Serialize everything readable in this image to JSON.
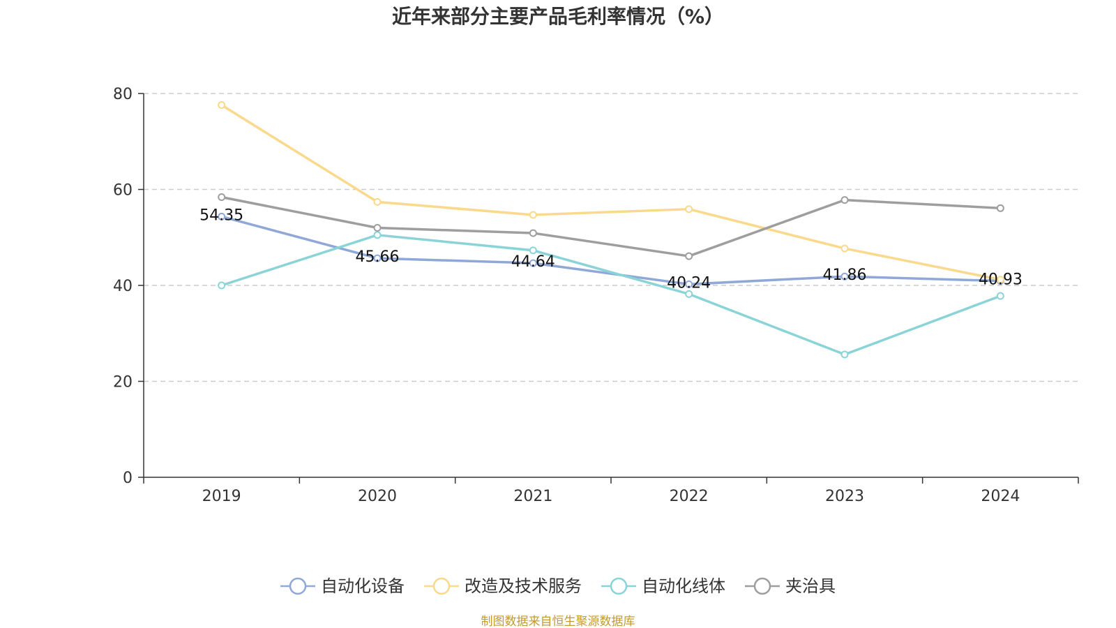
{
  "chart_data": {
    "type": "line",
    "title": "近年来部分主要产品毛利率情况（%）",
    "categories": [
      "2019",
      "2020",
      "2021",
      "2022",
      "2023",
      "2024"
    ],
    "ylim": [
      0,
      80
    ],
    "yticks": [
      0,
      20,
      40,
      60,
      80
    ],
    "grid": true,
    "legend_position": "bottom",
    "series": [
      {
        "name": "自动化设备",
        "color": "#8fa8d8",
        "values": [
          54.35,
          45.66,
          44.64,
          40.24,
          41.86,
          40.93
        ],
        "labels": [
          "54.35",
          "45.66",
          "44.64",
          "40.24",
          "41.86",
          "40.93"
        ]
      },
      {
        "name": "改造及技术服务",
        "color": "#fad98d",
        "values": [
          77.6,
          57.4,
          54.7,
          55.9,
          47.7,
          41.2
        ]
      },
      {
        "name": "自动化线体",
        "color": "#8ad4d8",
        "values": [
          40.0,
          50.5,
          47.3,
          38.2,
          25.6,
          37.8
        ]
      },
      {
        "name": "夹治具",
        "color": "#9e9e9e",
        "values": [
          58.4,
          52.0,
          50.9,
          46.1,
          57.8,
          56.1
        ]
      }
    ]
  },
  "source": {
    "text": "制图数据来自恒生聚源数据库",
    "color": "#c49a2e"
  }
}
